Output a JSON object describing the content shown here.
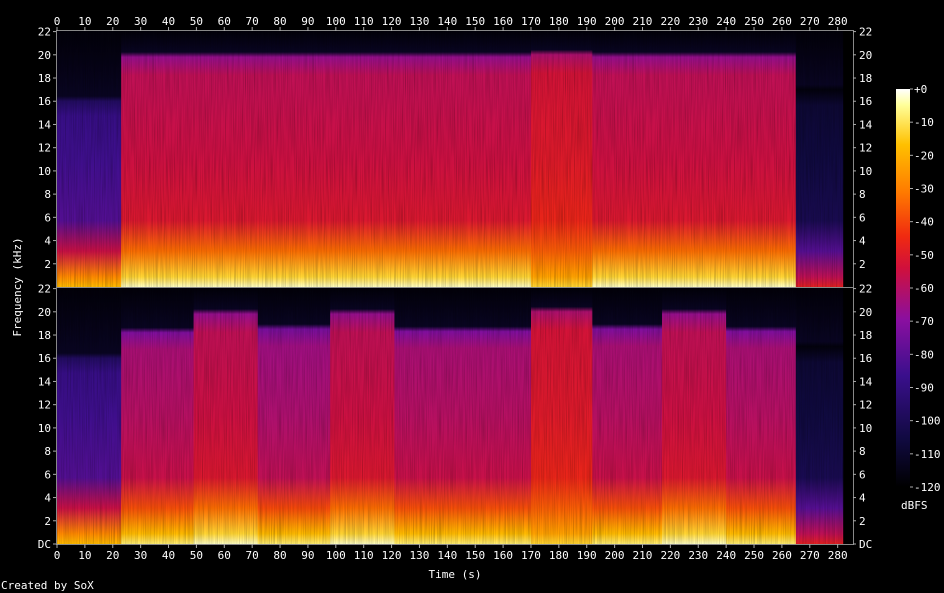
{
  "chart_data": {
    "type": "heatmap",
    "xlabel": "Time (s)",
    "ylabel": "Frequency (kHz)",
    "colorbar_unit": "dBFS",
    "credit": "Created by SoX",
    "x_ticks": [
      0,
      10,
      20,
      30,
      40,
      50,
      60,
      70,
      80,
      90,
      100,
      110,
      120,
      130,
      140,
      150,
      160,
      170,
      180,
      190,
      200,
      210,
      220,
      230,
      240,
      250,
      260,
      270,
      280
    ],
    "xlim": [
      0,
      285.5
    ],
    "ylim_khz": [
      0,
      22.05
    ],
    "y_ticks": [
      "DC",
      "2",
      "4",
      "6",
      "8",
      "10",
      "12",
      "14",
      "16",
      "18",
      "20",
      "22"
    ],
    "colorbar_ticks": [
      "+0",
      "-10",
      "-20",
      "-30",
      "-40",
      "-50",
      "-60",
      "-70",
      "-80",
      "-90",
      "-100",
      "-110",
      "-120"
    ],
    "colorbar_range_db": [
      -120,
      0
    ],
    "channels": [
      {
        "segments": [
          {
            "t0": 0,
            "t1": 23,
            "cutoff_khz": 16,
            "level_db": -85,
            "low_level_db": -30
          },
          {
            "t0": 23,
            "t1": 170,
            "cutoff_khz": 19.8,
            "level_db": -55,
            "low_level_db": -15
          },
          {
            "t0": 170,
            "t1": 192,
            "cutoff_khz": 20,
            "level_db": -50,
            "low_level_db": -25
          },
          {
            "t0": 192,
            "t1": 265,
            "cutoff_khz": 19.8,
            "level_db": -55,
            "low_level_db": -15
          },
          {
            "t0": 265,
            "t1": 282,
            "cutoff_khz": 17,
            "level_db": -105,
            "low_level_db": -60
          }
        ]
      },
      {
        "segments": [
          {
            "t0": 0,
            "t1": 23,
            "cutoff_khz": 16,
            "level_db": -85,
            "low_level_db": -30
          },
          {
            "t0": 23,
            "t1": 49,
            "cutoff_khz": 18.2,
            "level_db": -60,
            "low_level_db": -20
          },
          {
            "t0": 49,
            "t1": 72,
            "cutoff_khz": 19.8,
            "level_db": -55,
            "low_level_db": -15
          },
          {
            "t0": 72,
            "t1": 98,
            "cutoff_khz": 18.5,
            "level_db": -62,
            "low_level_db": -20
          },
          {
            "t0": 98,
            "t1": 121,
            "cutoff_khz": 19.8,
            "level_db": -55,
            "low_level_db": -15
          },
          {
            "t0": 121,
            "t1": 170,
            "cutoff_khz": 18.3,
            "level_db": -60,
            "low_level_db": -20
          },
          {
            "t0": 170,
            "t1": 192,
            "cutoff_khz": 20,
            "level_db": -50,
            "low_level_db": -25
          },
          {
            "t0": 192,
            "t1": 217,
            "cutoff_khz": 18.5,
            "level_db": -60,
            "low_level_db": -20
          },
          {
            "t0": 217,
            "t1": 240,
            "cutoff_khz": 19.8,
            "level_db": -55,
            "low_level_db": -15
          },
          {
            "t0": 240,
            "t1": 265,
            "cutoff_khz": 18.3,
            "level_db": -60,
            "low_level_db": -20
          },
          {
            "t0": 265,
            "t1": 282,
            "cutoff_khz": 17,
            "level_db": -105,
            "low_level_db": -60
          }
        ]
      }
    ]
  }
}
